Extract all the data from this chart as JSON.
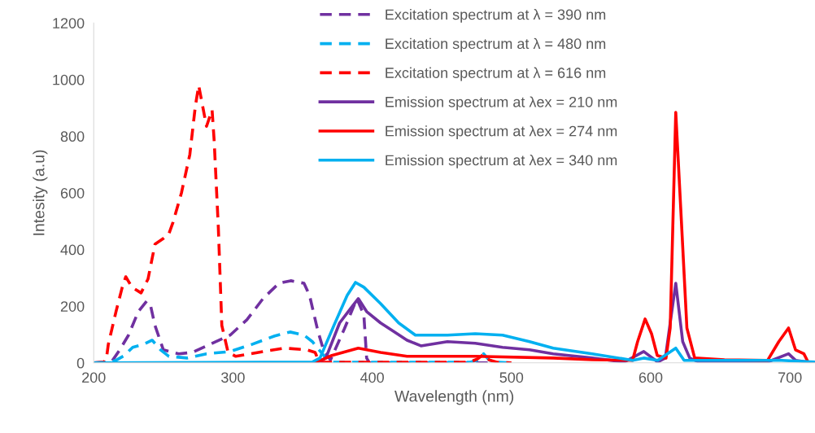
{
  "chart_data": {
    "type": "line",
    "xlabel": "Wavelength (nm)",
    "ylabel": "Intesity (a.u)",
    "xlim": [
      200,
      718
    ],
    "xticks": [
      200,
      300,
      400,
      500,
      600,
      700
    ],
    "ylim": [
      0,
      1200
    ],
    "yticks": [
      0,
      200,
      400,
      600,
      800,
      1000,
      1200
    ],
    "grid": false,
    "legend": "top",
    "marker": "none",
    "series": [
      {
        "name": "Excitation spectrum at λ = 390 nm",
        "color": "#7030a0",
        "line_style": "dashed",
        "x": [
          200,
          213,
          218.7,
          225,
          232,
          238,
          241,
          244,
          250,
          261,
          271,
          285,
          298,
          310,
          321.6,
          333,
          341.5,
          351,
          355,
          361,
          365,
          370,
          380,
          389,
          394,
          396,
          398,
          500
        ],
        "values": [
          0,
          5,
          46,
          98,
          181,
          218,
          198,
          132,
          46,
          32,
          37,
          69,
          98,
          152,
          227,
          281,
          290,
          281,
          238,
          112,
          46,
          10,
          120,
          227,
          169,
          17,
          0,
          0
        ]
      },
      {
        "name": "Excitation spectrum at λ = 480 nm",
        "color": "#00b0f0",
        "line_style": "dashed",
        "x": [
          200,
          210,
          216,
          222,
          228,
          236,
          242,
          248,
          254,
          267,
          281,
          298,
          314,
          330,
          341,
          351,
          357,
          366.7,
          372,
          470,
          476,
          480,
          484,
          490,
          500
        ],
        "values": [
          0,
          2,
          9,
          26,
          55,
          66,
          80,
          46,
          23,
          17,
          32,
          40,
          66,
          95,
          109,
          98,
          75,
          17,
          2,
          2,
          10,
          32,
          10,
          2,
          0
        ]
      },
      {
        "name": "Excitation spectrum at λ = 616 nm",
        "color": "#ff0000",
        "line_style": "dashed",
        "x": [
          200,
          207,
          209,
          210.5,
          216,
          220.5,
          223,
          227.5,
          234,
          239,
          244,
          250,
          254,
          257,
          263,
          269,
          273,
          275.4,
          281,
          285,
          286.5,
          289.5,
          292,
          296.5,
          302,
          321.6,
          337,
          353,
          359,
          362,
          470,
          476,
          480,
          484,
          490,
          500
        ],
        "values": [
          0,
          2,
          11,
          66,
          181,
          267,
          304,
          267,
          247,
          296,
          419,
          439,
          456,
          497,
          600,
          735,
          907,
          979,
          835,
          893,
          784,
          477,
          132,
          37,
          23,
          40,
          52,
          46,
          37,
          2,
          2,
          15,
          30,
          10,
          2,
          0
        ]
      },
      {
        "name": "Emission spectrum at λex = 210 nm",
        "color": "#7030a0",
        "line_style": "solid",
        "x": [
          200,
          360,
          366.7,
          376.6,
          384,
          390,
          396,
          406,
          415,
          425,
          435,
          454,
          474,
          493.6,
          513,
          530,
          558,
          581,
          595,
          605,
          610.5,
          618,
          623,
          628,
          636,
          684,
          699,
          704,
          717
        ],
        "values": [
          0,
          0,
          17,
          141,
          189,
          227,
          181,
          141,
          112,
          80,
          60,
          75,
          69,
          55,
          46,
          32,
          17,
          3,
          40,
          3,
          17,
          281,
          75,
          17,
          0,
          3,
          32,
          9,
          0
        ]
      },
      {
        "name": "Emission spectrum at λex = 274 nm",
        "color": "#ff0000",
        "line_style": "solid",
        "x": [
          200,
          359,
          371,
          390,
          406,
          425,
          474,
          530,
          558,
          587,
          590.6,
          596,
          600.6,
          604.7,
          611,
          614,
          618,
          622,
          626,
          631.6,
          653,
          684,
          692,
          699,
          704,
          710,
          713,
          717
        ],
        "values": [
          0,
          0,
          26,
          52,
          37,
          23,
          23,
          17,
          11,
          9,
          75,
          155,
          103,
          26,
          17,
          123,
          884,
          505,
          123,
          17,
          11,
          9,
          75,
          123,
          46,
          32,
          3,
          0
        ]
      },
      {
        "name": "Emission spectrum at λex = 340 nm",
        "color": "#00b0f0",
        "line_style": "solid",
        "x": [
          200,
          357,
          362.5,
          372.5,
          382,
          388,
          394,
          406,
          419,
          431,
          454,
          474,
          493.6,
          513,
          530,
          558,
          587,
          595,
          605,
          618,
          624,
          694,
          717
        ],
        "values": [
          0,
          3,
          17,
          132,
          238,
          284,
          267,
          209,
          141,
          98,
          98,
          103,
          98,
          75,
          52,
          32,
          9,
          17,
          9,
          52,
          9,
          9,
          3
        ]
      }
    ]
  }
}
